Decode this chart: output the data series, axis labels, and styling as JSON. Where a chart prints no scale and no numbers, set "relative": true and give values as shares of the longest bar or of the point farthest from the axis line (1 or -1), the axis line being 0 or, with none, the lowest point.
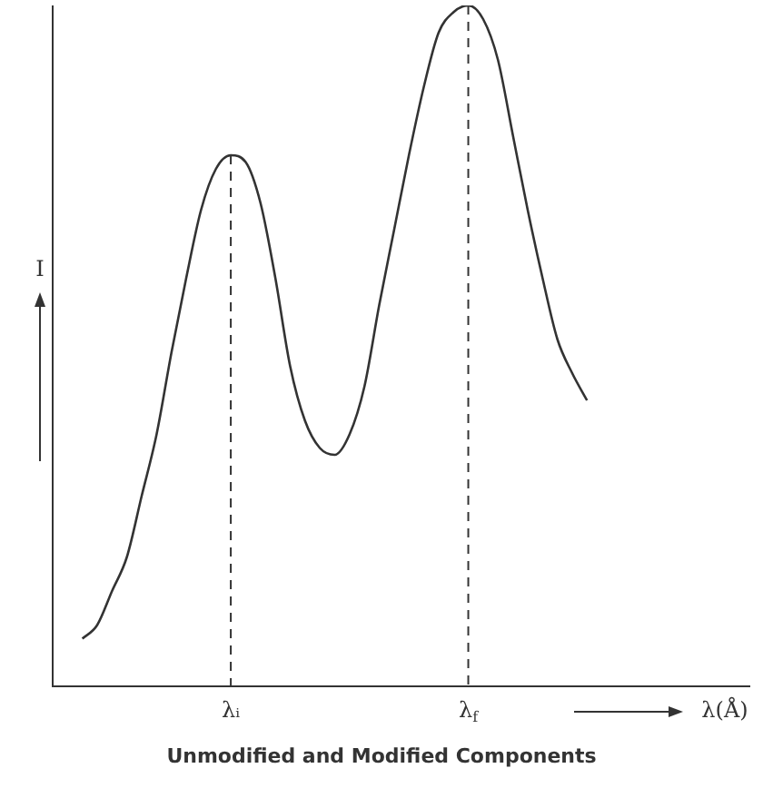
{
  "chart_data": {
    "type": "line",
    "relative": true,
    "title": "Unmodified and Modified Components",
    "xlabel": "λ(Å)",
    "ylabel": "I",
    "categories": [
      null,
      null,
      null,
      null,
      null,
      null,
      null,
      null,
      null,
      null,
      null,
      null,
      "λᵢ",
      null,
      null,
      null,
      null,
      null,
      null,
      null,
      null,
      null,
      null,
      null,
      null,
      null,
      null,
      null,
      "λ$_{f}$",
      null,
      null,
      null,
      null,
      null,
      null,
      null,
      null,
      null,
      null,
      null,
      null,
      null,
      null,
      null,
      null,
      null,
      null,
      null
    ],
    "series": [
      {
        "color": "#333333",
        "values": [
          null,
          null,
          0.07,
          0.09,
          0.14,
          0.19,
          0.28,
          0.37,
          0.49,
          0.6,
          0.7,
          0.76,
          0.78,
          0.77,
          0.71,
          0.6,
          0.47,
          0.39,
          0.35,
          0.34,
          0.37,
          0.44,
          0.56,
          0.67,
          0.78,
          0.88,
          0.96,
          0.99,
          1,
          0.98,
          0.92,
          0.81,
          0.7,
          0.6,
          0.51,
          0.46,
          0.42,
          null,
          null,
          null,
          null,
          null,
          null,
          null,
          null,
          null,
          null,
          null
        ]
      }
    ],
    "ref_lines": [
      {
        "axis": "x",
        "value": "λᵢ",
        "line_style": "dashed"
      },
      {
        "axis": "x",
        "value": "λ$_{f}$",
        "line_style": "dashed"
      }
    ],
    "legend": false,
    "marker": "none",
    "line_style": "solid"
  }
}
